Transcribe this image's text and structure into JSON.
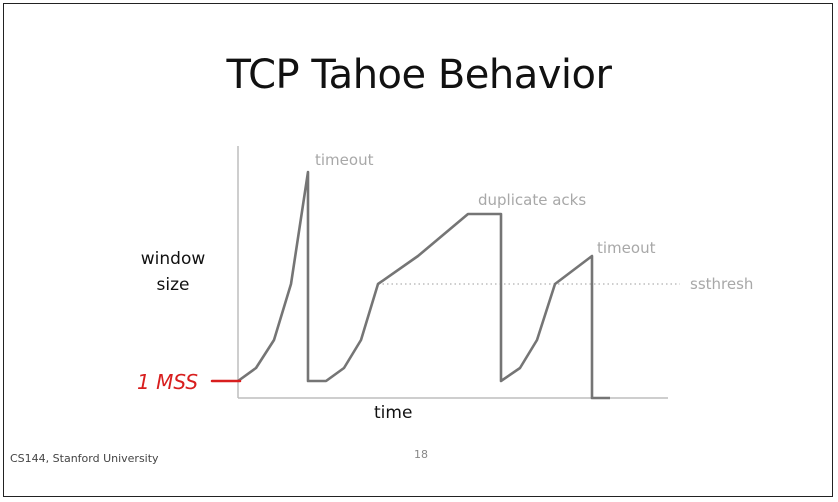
{
  "slide": {
    "title": "TCP Tahoe Behavior",
    "y_axis_label_line1": "window",
    "y_axis_label_line2": "size",
    "x_axis_label": "time",
    "footer": "CS144, Stanford University",
    "page_number": "18"
  },
  "annotations": {
    "timeout_1": "timeout",
    "duplicate_acks": "duplicate acks",
    "timeout_2": "timeout",
    "ssthresh": "ssthresh"
  },
  "handwriting": {
    "text": "1 MSS",
    "color": "#d81e1e"
  },
  "colors": {
    "curve": "#757575",
    "axis": "#bdbdbd",
    "annotation": "#a8a8a8",
    "ssthresh_line": "#bdbdbd",
    "handwriting": "#d81e1e"
  }
}
